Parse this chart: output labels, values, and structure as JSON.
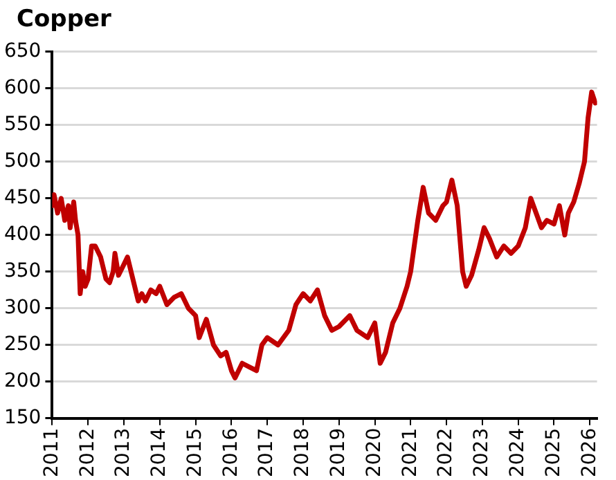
{
  "chart_data": {
    "type": "line",
    "title": "Copper",
    "x": [
      2011,
      2011.05,
      2011.15,
      2011.25,
      2011.35,
      2011.45,
      2011.5,
      2011.6,
      2011.65,
      2011.72,
      2011.78,
      2011.85,
      2011.92,
      2012,
      2012.1,
      2012.2,
      2012.35,
      2012.5,
      2012.6,
      2012.7,
      2012.75,
      2012.85,
      2013,
      2013.1,
      2013.25,
      2013.4,
      2013.5,
      2013.6,
      2013.75,
      2013.9,
      2014,
      2014.2,
      2014.4,
      2014.6,
      2014.8,
      2015,
      2015.1,
      2015.3,
      2015.5,
      2015.7,
      2015.85,
      2016,
      2016.1,
      2016.3,
      2016.5,
      2016.7,
      2016.85,
      2017,
      2017.3,
      2017.6,
      2017.8,
      2018,
      2018.2,
      2018.4,
      2018.6,
      2018.8,
      2019,
      2019.3,
      2019.5,
      2019.8,
      2020,
      2020.15,
      2020.3,
      2020.5,
      2020.7,
      2020.9,
      2021,
      2021.2,
      2021.35,
      2021.5,
      2021.7,
      2021.9,
      2022,
      2022.15,
      2022.3,
      2022.45,
      2022.55,
      2022.7,
      2022.9,
      2023.05,
      2023.2,
      2023.4,
      2023.6,
      2023.8,
      2024,
      2024.2,
      2024.35,
      2024.5,
      2024.65,
      2024.8,
      2025,
      2025.15,
      2025.3,
      2025.4,
      2025.55,
      2025.7,
      2025.85,
      2025.95,
      2026.05,
      2026.15
    ],
    "series": [
      {
        "color": "#c00000",
        "values": [
          440,
          455,
          430,
          450,
          420,
          440,
          410,
          445,
          420,
          400,
          320,
          350,
          330,
          340,
          385,
          385,
          370,
          340,
          335,
          350,
          375,
          345,
          360,
          370,
          340,
          310,
          320,
          310,
          325,
          320,
          330,
          305,
          315,
          320,
          300,
          290,
          260,
          285,
          250,
          235,
          240,
          215,
          205,
          225,
          220,
          215,
          250,
          260,
          250,
          270,
          305,
          320,
          310,
          325,
          290,
          270,
          275,
          290,
          270,
          260,
          280,
          225,
          240,
          280,
          300,
          330,
          350,
          420,
          465,
          430,
          420,
          440,
          445,
          475,
          440,
          350,
          330,
          345,
          380,
          410,
          395,
          370,
          385,
          375,
          385,
          410,
          450,
          430,
          410,
          420,
          415,
          440,
          400,
          430,
          445,
          470,
          500,
          560,
          595,
          580
        ]
      }
    ],
    "xlim": [
      2011,
      2026.2
    ],
    "xticks": [
      2011,
      2012,
      2013,
      2014,
      2015,
      2016,
      2017,
      2018,
      2019,
      2020,
      2021,
      2022,
      2023,
      2024,
      2025,
      2026
    ],
    "ylim": [
      150,
      650
    ],
    "yticks": [
      150,
      200,
      250,
      300,
      350,
      400,
      450,
      500,
      550,
      600,
      650
    ],
    "grid": "y",
    "legend": false,
    "marker": "none",
    "line_style": "solid"
  }
}
